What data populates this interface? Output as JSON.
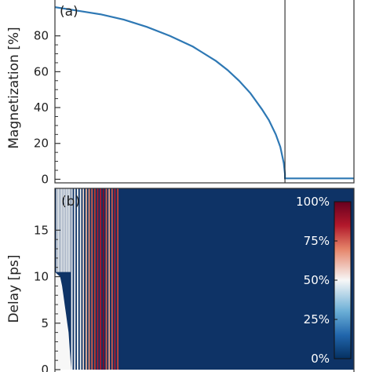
{
  "chart_data": [
    {
      "type": "line",
      "panel_label": "(a)",
      "ylabel": "Magnetization [%]",
      "ylim": [
        -2,
        100
      ],
      "yticks": [
        0,
        20,
        40,
        60,
        80
      ],
      "grid": false,
      "color": "#2e78b4",
      "series": [
        {
          "x": [
            0,
            0.1,
            0.2,
            0.3,
            0.4,
            0.5,
            0.6,
            0.7,
            0.75,
            0.8,
            0.85,
            0.9,
            0.93,
            0.96,
            0.98,
            0.995,
            1.0,
            1.0,
            1.3
          ],
          "y": [
            96,
            94,
            92,
            89,
            85,
            80,
            74,
            66,
            61,
            55,
            48,
            39,
            33,
            25,
            18,
            9,
            3,
            0.5,
            0.5
          ]
        }
      ],
      "vline_x": 1.0,
      "xlim": [
        0,
        1.3
      ]
    },
    {
      "type": "heatmap",
      "panel_label": "(b)",
      "ylabel": "Delay [ps]",
      "ylim": [
        0,
        19.5
      ],
      "yticks": [
        0,
        5,
        10,
        15
      ],
      "colorbar": {
        "ticks": [
          "100%",
          "75%",
          "50%",
          "25%",
          "0%"
        ],
        "colors": [
          "#67001f",
          "#d6604d",
          "#f7f7f7",
          "#4393c3",
          "#053061"
        ]
      },
      "background_color": "#0e3366",
      "white_region_boundary": {
        "delay": [
          10.5,
          10,
          9,
          8,
          7,
          6,
          5,
          4,
          3,
          2,
          1,
          0
        ],
        "x": [
          0,
          0.08,
          0.11,
          0.13,
          0.15,
          0.17,
          0.19,
          0.21,
          0.22,
          0.23,
          0.24,
          0.25
        ]
      },
      "stripe_region": [
        0.25,
        1.0
      ],
      "xlim": [
        0,
        4.6
      ]
    }
  ]
}
